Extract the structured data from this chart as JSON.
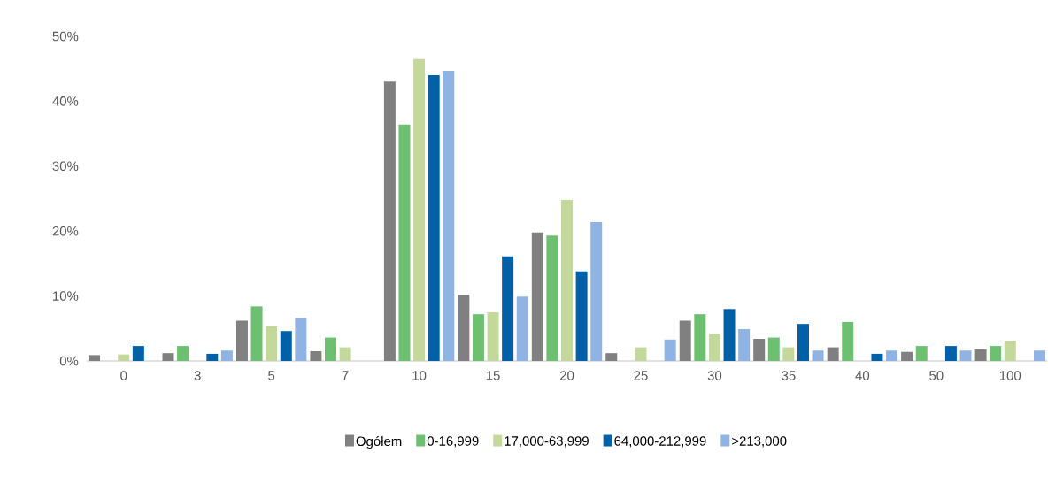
{
  "chart_data": {
    "type": "bar",
    "categories": [
      "0",
      "3",
      "5",
      "7",
      "10",
      "15",
      "20",
      "25",
      "30",
      "35",
      "40",
      "50",
      "100"
    ],
    "series": [
      {
        "name": "Ogółem",
        "color": "#808080",
        "values": [
          0.9,
          1.2,
          6.2,
          1.5,
          43.0,
          10.2,
          19.8,
          1.2,
          6.2,
          3.4,
          2.1,
          1.4,
          1.8
        ]
      },
      {
        "name": "0-16,999",
        "color": "#6cc070",
        "values": [
          0,
          2.3,
          8.4,
          3.6,
          36.4,
          7.2,
          19.3,
          0,
          7.2,
          3.6,
          6.0,
          2.3,
          2.3
        ]
      },
      {
        "name": "17,000-63,999",
        "color": "#c5d89c",
        "values": [
          1.0,
          0,
          5.4,
          2.1,
          46.5,
          7.5,
          24.8,
          2.1,
          4.2,
          2.1,
          0,
          0,
          3.1
        ]
      },
      {
        "name": "64,000-212,999",
        "color": "#0060a8",
        "values": [
          2.3,
          1.1,
          4.6,
          0,
          44.0,
          16.1,
          13.8,
          0,
          8.0,
          5.7,
          1.1,
          2.3,
          0
        ]
      },
      {
        "name": ">213,000",
        "color": "#8fb4e3",
        "values": [
          0,
          1.6,
          6.6,
          0,
          44.7,
          9.9,
          21.4,
          3.3,
          4.9,
          1.6,
          1.6,
          1.6,
          1.6
        ]
      }
    ],
    "ylim": [
      0,
      50
    ],
    "yticks": [
      {
        "value": 0,
        "label": "0%"
      },
      {
        "value": 10,
        "label": "10%"
      },
      {
        "value": 20,
        "label": "20%"
      },
      {
        "value": 30,
        "label": "30%"
      },
      {
        "value": 40,
        "label": "40%"
      },
      {
        "value": 50,
        "label": "50%"
      }
    ],
    "legend": "bottom"
  }
}
